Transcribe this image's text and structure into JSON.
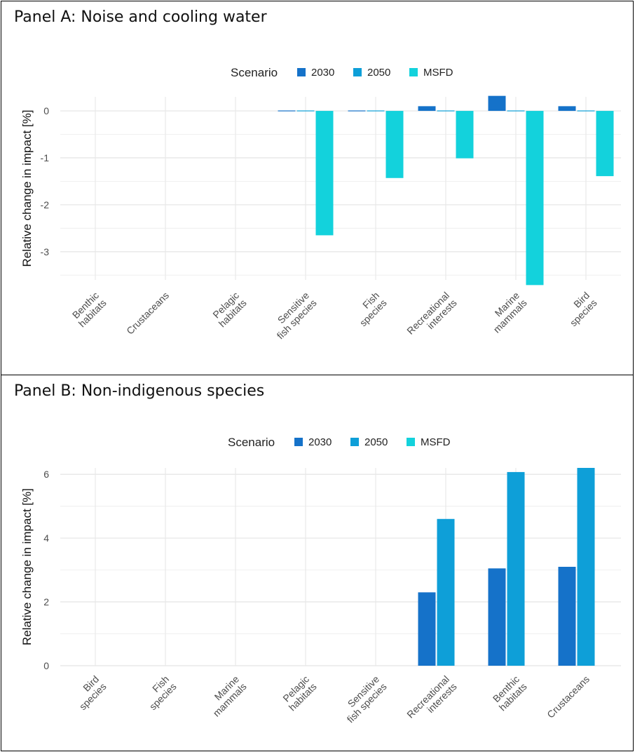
{
  "colors": {
    "2030": "#1572c9",
    "2050": "#0e9fd8",
    "MSFD": "#13d2dc"
  },
  "chart_data": [
    {
      "type": "bar",
      "title": "Panel A: Noise and cooling water",
      "legend_title": "Scenario",
      "legend_position": "top",
      "ylabel": "Relative change in impact [%]",
      "xlabel": "",
      "ylim": [
        -3.6,
        0.3
      ],
      "yticks": [
        0,
        -1,
        -2,
        -3
      ],
      "grid": true,
      "categories": [
        [
          "Benthic",
          "habitats"
        ],
        [
          "Crustaceans"
        ],
        [
          "Pelagic",
          "habitats"
        ],
        [
          "Sensitive",
          "fish species"
        ],
        [
          "Fish",
          "species"
        ],
        [
          "Recreational",
          "interests"
        ],
        [
          "Marine",
          "mammals"
        ],
        [
          "Bird",
          "species"
        ]
      ],
      "series": [
        {
          "name": "2030",
          "values": [
            null,
            null,
            null,
            0,
            0,
            0.1,
            0.32,
            0.1
          ]
        },
        {
          "name": "2050",
          "values": [
            null,
            null,
            null,
            0,
            0,
            0,
            0,
            0
          ]
        },
        {
          "name": "MSFD",
          "values": [
            null,
            null,
            null,
            -2.65,
            -1.43,
            -1.01,
            -3.71,
            -1.39
          ]
        }
      ]
    },
    {
      "type": "bar",
      "title": "Panel B: Non-indigenous species",
      "legend_title": "Scenario",
      "legend_position": "top",
      "ylabel": "Relative change in impact [%]",
      "xlabel": "",
      "ylim": [
        0,
        6.2
      ],
      "yticks": [
        0,
        2,
        4,
        6
      ],
      "grid": true,
      "categories": [
        [
          "Bird",
          "species"
        ],
        [
          "Fish",
          "species"
        ],
        [
          "Marine",
          "mammals"
        ],
        [
          "Pelagic",
          "habitats"
        ],
        [
          "Sensitive",
          "fish species"
        ],
        [
          "Recreational",
          "interests"
        ],
        [
          "Benthic",
          "habitats"
        ],
        [
          "Crustaceans"
        ]
      ],
      "series": [
        {
          "name": "2030",
          "values": [
            null,
            null,
            null,
            null,
            null,
            2.3,
            3.05,
            3.1
          ]
        },
        {
          "name": "2050",
          "values": [
            null,
            null,
            null,
            null,
            null,
            4.6,
            6.07,
            6.2
          ]
        },
        {
          "name": "MSFD",
          "values": [
            null,
            null,
            null,
            null,
            null,
            null,
            null,
            null
          ]
        }
      ]
    }
  ]
}
